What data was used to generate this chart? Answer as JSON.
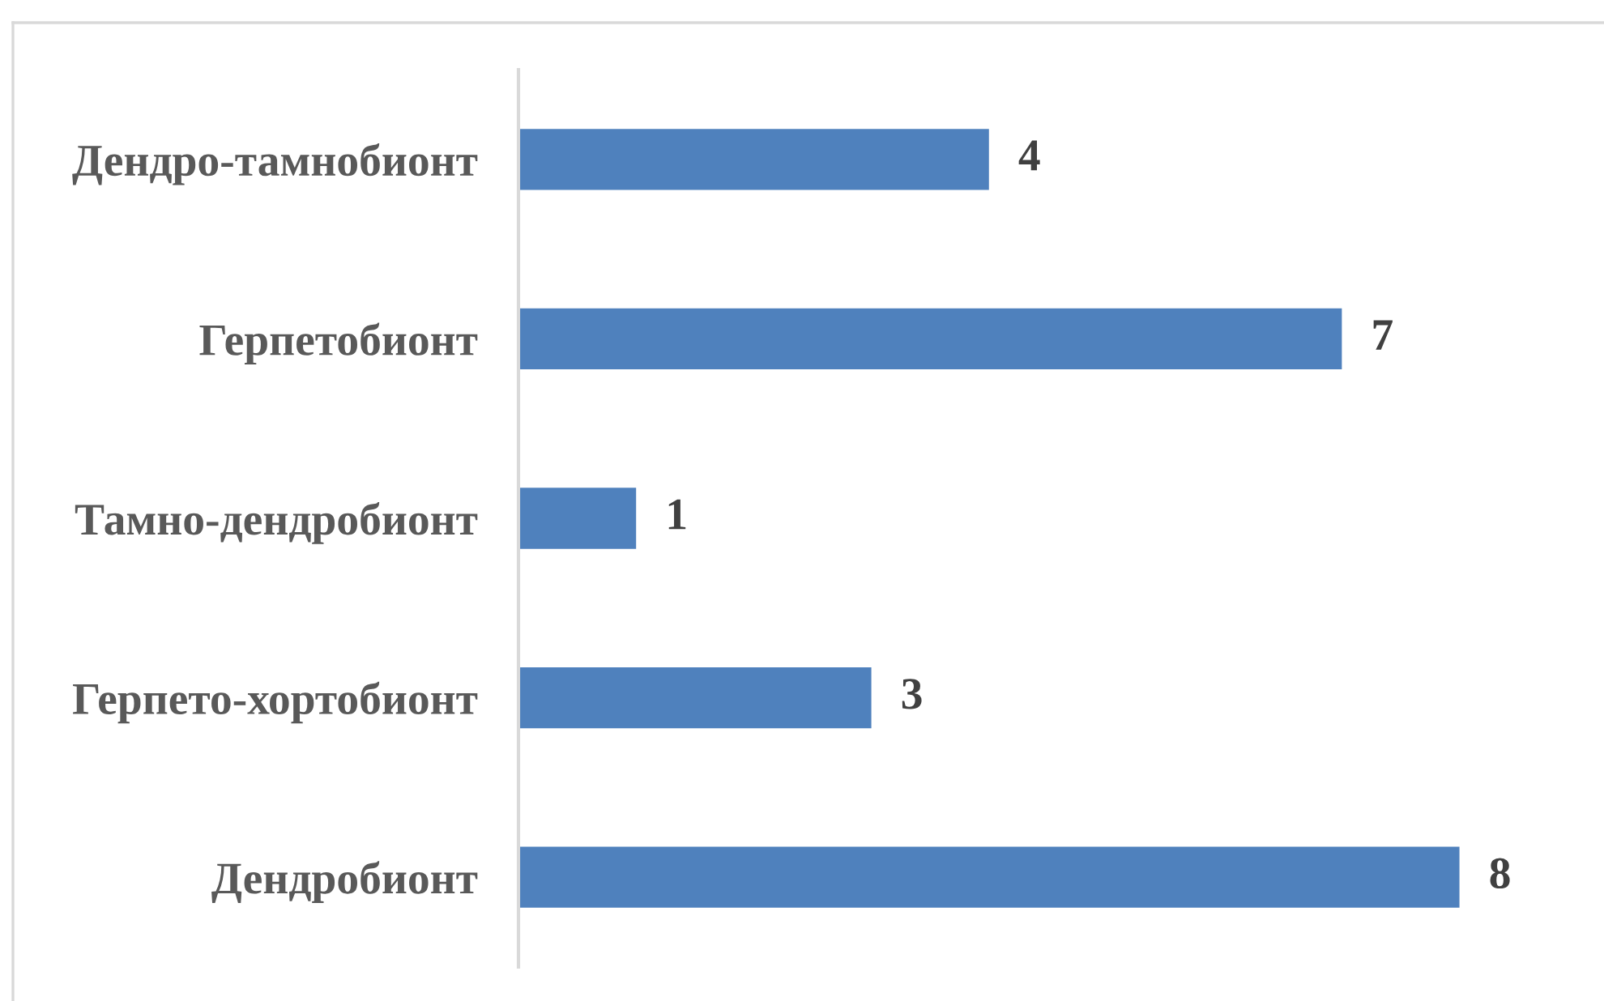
{
  "chart_data": {
    "type": "bar",
    "orientation": "horizontal",
    "categories": [
      "Дендро-тамнобионт",
      "Герпетобионт",
      "Тамно-дендробионт",
      "Герпето-хортобионт",
      "Дендробионт"
    ],
    "values": [
      4,
      7,
      1,
      3,
      8
    ],
    "color": "#4f81bd",
    "data_labels": true,
    "tick_labels": "y",
    "grid": false,
    "legend": false
  }
}
